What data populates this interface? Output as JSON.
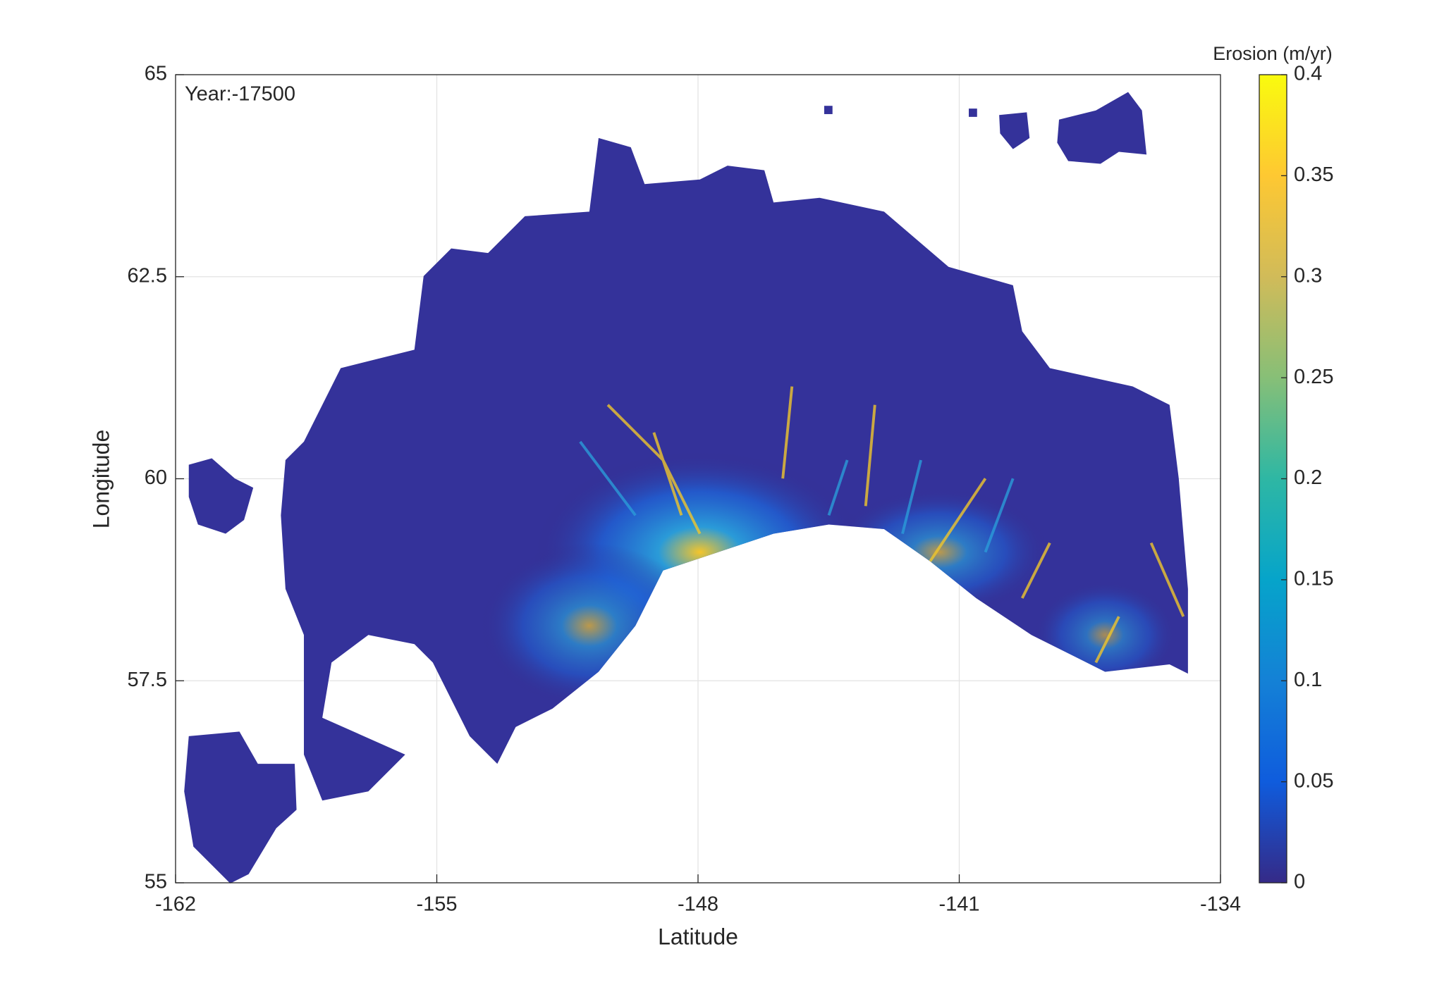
{
  "chart_data": {
    "type": "raster-map",
    "annotation": "Year:-17500",
    "xlabel": "Latitude",
    "ylabel": "Longitude",
    "xlim": [
      -162,
      -134
    ],
    "xticks": [
      -162,
      -155,
      -148,
      -141,
      -134
    ],
    "ylim": [
      55,
      65
    ],
    "yticks": [
      55,
      57.5,
      60,
      62.5,
      65
    ],
    "grid": true,
    "colorbar": {
      "title": "Erosion (m/yr)",
      "colormap": "parula",
      "lim": [
        0,
        0.4
      ],
      "ticks": [
        0,
        0.05,
        0.1,
        0.15,
        0.2,
        0.25,
        0.3,
        0.35,
        0.4
      ]
    }
  }
}
